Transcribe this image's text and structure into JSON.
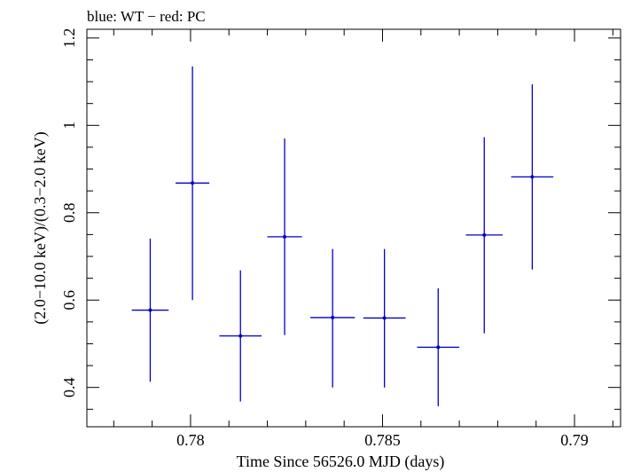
{
  "chart_data": {
    "type": "scatter",
    "title": "blue: WT − red: PC",
    "xlabel": "Time Since 56526.0 MJD (days)",
    "ylabel": "(2.0−10.0 keV)/(0.3−2.0 keV)",
    "xlim": [
      0.7773,
      0.7912
    ],
    "ylim": [
      0.31,
      1.22
    ],
    "x_ticks": [
      0.78,
      0.785,
      0.79
    ],
    "x_tick_labels": [
      "0.78",
      "0.785",
      "0.79"
    ],
    "y_ticks": [
      0.4,
      0.6,
      0.8,
      1.0,
      1.2
    ],
    "y_tick_labels": [
      "0.4",
      "0.6",
      "0.8",
      "1",
      "1.2"
    ],
    "series": [
      {
        "name": "WT",
        "color": "#0000cc",
        "points": [
          {
            "x": 0.77895,
            "xerr": 0.00048,
            "y": 0.577,
            "ylo": 0.413,
            "yhi": 0.741
          },
          {
            "x": 0.78005,
            "xerr": 0.00044,
            "y": 0.868,
            "ylo": 0.6,
            "yhi": 1.135
          },
          {
            "x": 0.7813,
            "xerr": 0.00055,
            "y": 0.518,
            "ylo": 0.368,
            "yhi": 0.668
          },
          {
            "x": 0.78245,
            "xerr": 0.00045,
            "y": 0.745,
            "ylo": 0.52,
            "yhi": 0.97
          },
          {
            "x": 0.7837,
            "xerr": 0.00058,
            "y": 0.56,
            "ylo": 0.4,
            "yhi": 0.717
          },
          {
            "x": 0.78505,
            "xerr": 0.00055,
            "y": 0.559,
            "ylo": 0.4,
            "yhi": 0.717
          },
          {
            "x": 0.78645,
            "xerr": 0.00055,
            "y": 0.492,
            "ylo": 0.357,
            "yhi": 0.627
          },
          {
            "x": 0.78765,
            "xerr": 0.00048,
            "y": 0.749,
            "ylo": 0.524,
            "yhi": 0.973
          },
          {
            "x": 0.7889,
            "xerr": 0.00055,
            "y": 0.882,
            "ylo": 0.67,
            "yhi": 1.094
          }
        ]
      }
    ]
  }
}
